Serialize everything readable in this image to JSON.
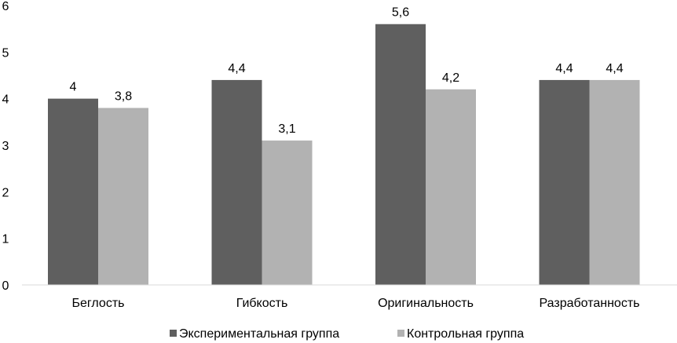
{
  "chart_data": {
    "type": "bar",
    "categories": [
      "Беглость",
      "Гибкость",
      "Оригинальность",
      "Разработанность"
    ],
    "series": [
      {
        "name": "Экспериментальная группа",
        "values": [
          4,
          4.4,
          5.6,
          4.4
        ],
        "labels": [
          "4",
          "4,4",
          "5,6",
          "4,4"
        ],
        "color": "#5f5f5f"
      },
      {
        "name": "Контрольная группа",
        "values": [
          3.8,
          3.1,
          4.2,
          4.4
        ],
        "labels": [
          "3,8",
          "3,1",
          "4,2",
          "4,4"
        ],
        "color": "#b2b2b2"
      }
    ],
    "y_ticks": [
      "0",
      "1",
      "2",
      "3",
      "4",
      "5",
      "6"
    ],
    "ylim": [
      0,
      6
    ],
    "grid": false,
    "legend_position": "bottom"
  }
}
